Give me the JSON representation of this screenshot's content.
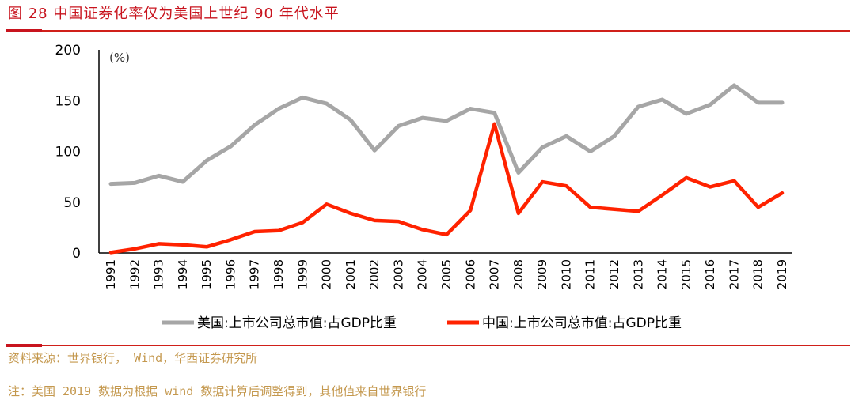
{
  "figure": {
    "title": "图 28  中国证券化率仅为美国上世纪 90 年代水平",
    "source": "资料来源：世界银行， Wind，华西证券研究所",
    "note": "注：美国 2019 数据为根据 wind 数据计算后调整得到，其他值来自世界银行"
  },
  "chart_data": {
    "type": "line",
    "unit_label": "(%)",
    "x": [
      1991,
      1992,
      1993,
      1994,
      1995,
      1996,
      1997,
      1998,
      1999,
      2000,
      2001,
      2002,
      2003,
      2004,
      2005,
      2006,
      2007,
      2008,
      2009,
      2010,
      2011,
      2012,
      2013,
      2014,
      2015,
      2016,
      2017,
      2018,
      2019
    ],
    "ylim": [
      0,
      200
    ],
    "yticks": [
      0,
      50,
      100,
      150,
      200
    ],
    "grid": false,
    "legend_position": "bottom",
    "series": [
      {
        "name": "美国:上市公司总市值:占GDP比重",
        "color": "#a6a6a6",
        "values": [
          68,
          69,
          76,
          70,
          91,
          105,
          126,
          142,
          153,
          147,
          131,
          101,
          125,
          133,
          130,
          142,
          138,
          79,
          104,
          115,
          100,
          115,
          144,
          151,
          137,
          146,
          165,
          148,
          148
        ]
      },
      {
        "name": "中国:上市公司总市值:占GDP比重",
        "color": "#ff2200",
        "values": [
          0.5,
          4,
          9,
          8,
          6,
          13,
          21,
          22,
          30,
          48,
          39,
          32,
          31,
          23,
          18,
          42,
          127,
          39,
          70,
          66,
          45,
          43,
          41,
          57,
          74,
          65,
          71,
          45,
          59
        ]
      }
    ]
  }
}
